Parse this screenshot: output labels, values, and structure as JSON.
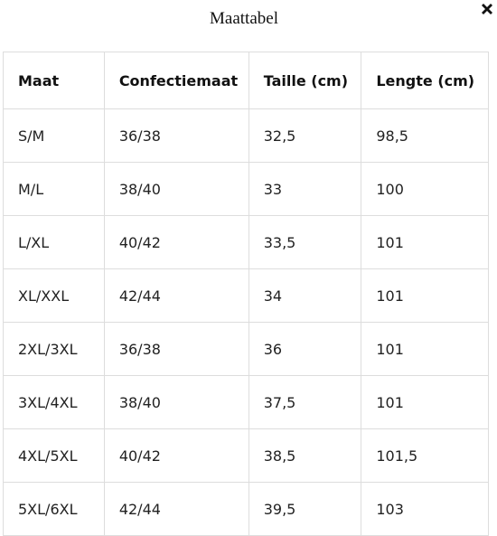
{
  "title": "Maattabel",
  "table": {
    "header": [
      "Maat",
      "Confectiemaat",
      "Taille (cm)",
      "Lengte (cm)"
    ],
    "rows": [
      [
        "S/M",
        "36/38",
        "32,5",
        "98,5"
      ],
      [
        "M/L",
        "38/40",
        "33",
        "100"
      ],
      [
        "L/XL",
        "40/42",
        "33,5",
        "101"
      ],
      [
        "XL/XXL",
        "42/44",
        "34",
        "101"
      ],
      [
        "2XL/3XL",
        "36/38",
        "36",
        "101"
      ],
      [
        "3XL/4XL",
        "38/40",
        "37,5",
        "101"
      ],
      [
        "4XL/5XL",
        "40/42",
        "38,5",
        "101,5"
      ],
      [
        "5XL/6XL",
        "42/44",
        "39,5",
        "103"
      ]
    ]
  }
}
